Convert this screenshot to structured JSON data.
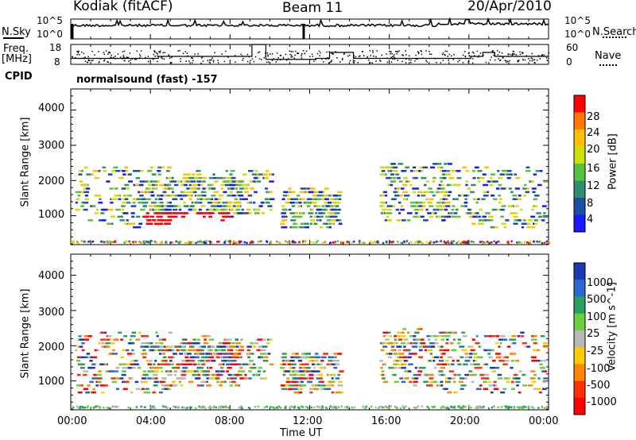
{
  "header": {
    "station": "Kodiak (fitACF)",
    "beam": "Beam 11",
    "date": "20/Apr/2010"
  },
  "noise_panel": {
    "left_label": "N.Sky",
    "right_label": "N.Search",
    "left_ticks": [
      "10^5",
      "10^0"
    ],
    "right_ticks": [
      "10^5",
      "10^0"
    ]
  },
  "freq_panel": {
    "left_label_top": "Freq.",
    "left_label_bottom": "[MHz]",
    "right_label": "Nave",
    "left_ticks": [
      "18",
      "8"
    ],
    "right_ticks": [
      "60",
      "0"
    ]
  },
  "cpid": {
    "label": "CPID",
    "value": "normalsound (fast) -157"
  },
  "chart_data": [
    {
      "type": "heatmap",
      "name": "power",
      "ylabel": "Slant Range [km]",
      "ylim": [
        180,
        4600
      ],
      "yticks": [
        "1000",
        "2000",
        "3000",
        "4000"
      ],
      "colorbar": {
        "label": "Power [dB]",
        "ticks": [
          "28",
          "24",
          "20",
          "16",
          "12",
          "8",
          "4"
        ],
        "colors": [
          "#ff0000",
          "#ff7a00",
          "#ffc000",
          "#cfe000",
          "#56c040",
          "#2f8f70",
          "#1c4ea8",
          "#1a1aff"
        ]
      },
      "xlim": [
        0,
        24
      ],
      "xlabel": ""
    },
    {
      "type": "heatmap",
      "name": "velocity",
      "ylabel": "Slant Range [km]",
      "ylim": [
        180,
        4600
      ],
      "yticks": [
        "1000",
        "2000",
        "3000",
        "4000"
      ],
      "colorbar": {
        "label": "Velocity [m s^-1]",
        "ticks": [
          "1000",
          "500",
          "100",
          "25",
          "-25",
          "-100",
          "-500",
          "-1000"
        ],
        "colors": [
          "#1c3ab0",
          "#2a6ad0",
          "#2aa060",
          "#6ad040",
          "#b8b8b8",
          "#ffcc00",
          "#ff8800",
          "#ff3000",
          "#ff0000"
        ]
      },
      "xlim": [
        0,
        24
      ],
      "xlabel": "Time UT",
      "xticks": [
        "00:00",
        "04:00",
        "08:00",
        "12:00",
        "16:00",
        "20:00",
        "00:00"
      ]
    }
  ]
}
